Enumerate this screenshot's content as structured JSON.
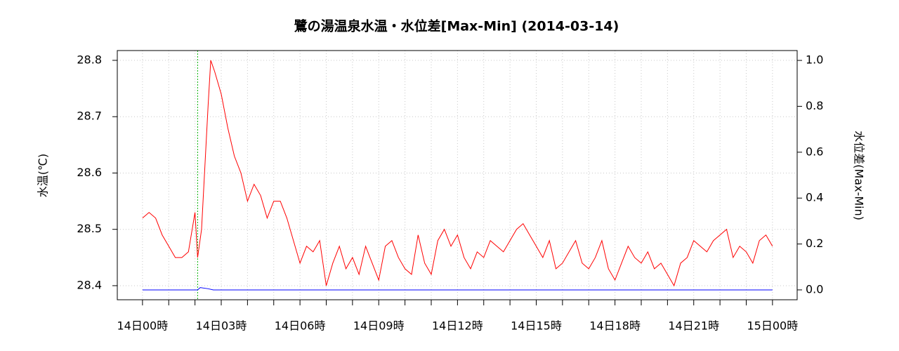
{
  "chart_data": {
    "type": "line",
    "title": "鷺の湯温泉水温・水位差[Max-Min] (2014-03-14)",
    "y_label": "水温(℃)",
    "y2_label": "水位差(Max-Min)",
    "xlim": [
      -0.96,
      24.94
    ],
    "xticks": [
      {
        "value": 0,
        "label": "14日00時"
      },
      {
        "value": 3,
        "label": "14日03時"
      },
      {
        "value": 6,
        "label": "14日06時"
      },
      {
        "value": 9,
        "label": "14日09時"
      },
      {
        "value": 12,
        "label": "14日12時"
      },
      {
        "value": 15,
        "label": "14日15時"
      },
      {
        "value": 18,
        "label": "14日18時"
      },
      {
        "value": 21,
        "label": "14日21時"
      },
      {
        "value": 24,
        "label": "15日00時"
      }
    ],
    "xminorticks": [
      1,
      2,
      4,
      5,
      7,
      8,
      10,
      11,
      13,
      14,
      16,
      17,
      19,
      20,
      22,
      23
    ],
    "ylim": [
      28.375,
      28.8174
    ],
    "yticks": [
      28.4,
      28.5,
      28.6,
      28.7,
      28.8
    ],
    "y2lim": [
      -0.043,
      1.043
    ],
    "y2ticks": [
      {
        "value": 0,
        "label": "0.0"
      },
      0.2,
      0.4,
      0.6,
      0.8,
      {
        "value": 1,
        "label": "1.0"
      }
    ],
    "grid": true,
    "vline": {
      "x": 2.1,
      "color": "#00b000"
    },
    "series": [
      {
        "color": "#ff0000",
        "x": [
          0,
          0.25,
          0.5,
          0.75,
          1,
          1.25,
          1.5,
          1.75,
          2,
          2.1,
          2.25,
          2.5,
          2.6,
          2.75,
          3,
          3.25,
          3.5,
          3.75,
          4,
          4.25,
          4.5,
          4.75,
          5,
          5.25,
          5.5,
          5.75,
          6,
          6.25,
          6.5,
          6.75,
          7,
          7.25,
          7.5,
          7.75,
          8,
          8.25,
          8.5,
          8.75,
          9,
          9.25,
          9.5,
          9.75,
          10,
          10.25,
          10.5,
          10.75,
          11,
          11.25,
          11.5,
          11.75,
          12,
          12.25,
          12.5,
          12.75,
          13,
          13.25,
          13.5,
          13.75,
          14,
          14.25,
          14.5,
          14.75,
          15,
          15.25,
          15.5,
          15.75,
          16,
          16.25,
          16.5,
          16.75,
          17,
          17.25,
          17.5,
          17.75,
          18,
          18.25,
          18.5,
          18.75,
          19,
          19.25,
          19.5,
          19.75,
          20,
          20.25,
          20.5,
          20.75,
          21,
          21.25,
          21.5,
          21.75,
          22,
          22.25,
          22.5,
          22.75,
          23,
          23.25,
          23.5,
          23.75,
          24
        ],
        "values": [
          28.52,
          28.53,
          28.52,
          28.49,
          28.47,
          28.45,
          28.45,
          28.46,
          28.53,
          28.45,
          28.5,
          28.72,
          28.8,
          28.78,
          28.74,
          28.68,
          28.63,
          28.6,
          28.55,
          28.58,
          28.56,
          28.52,
          28.55,
          28.55,
          28.52,
          28.48,
          28.44,
          28.47,
          28.46,
          28.48,
          28.4,
          28.44,
          28.47,
          28.43,
          28.45,
          28.42,
          28.47,
          28.44,
          28.41,
          28.47,
          28.48,
          28.45,
          28.43,
          28.42,
          28.49,
          28.44,
          28.42,
          28.48,
          28.5,
          28.47,
          28.49,
          28.45,
          28.43,
          28.46,
          28.45,
          28.48,
          28.47,
          28.46,
          28.48,
          28.5,
          28.51,
          28.49,
          28.47,
          28.45,
          28.48,
          28.43,
          28.44,
          28.46,
          28.48,
          28.44,
          28.43,
          28.45,
          28.48,
          28.43,
          28.41,
          28.44,
          28.47,
          28.45,
          28.44,
          28.46,
          28.43,
          28.44,
          28.42,
          28.4,
          28.44,
          28.45,
          28.48,
          28.47,
          28.46,
          28.48,
          28.49,
          28.5,
          28.45,
          28.47,
          28.46,
          28.44,
          28.48,
          28.49,
          28.47
        ]
      },
      {
        "color": "#0000ff",
        "axis": "y2",
        "x": [
          0,
          2.1,
          2.2,
          2.5,
          2.7,
          24
        ],
        "values": [
          0,
          0,
          0.01,
          0.005,
          0,
          0
        ]
      }
    ]
  }
}
